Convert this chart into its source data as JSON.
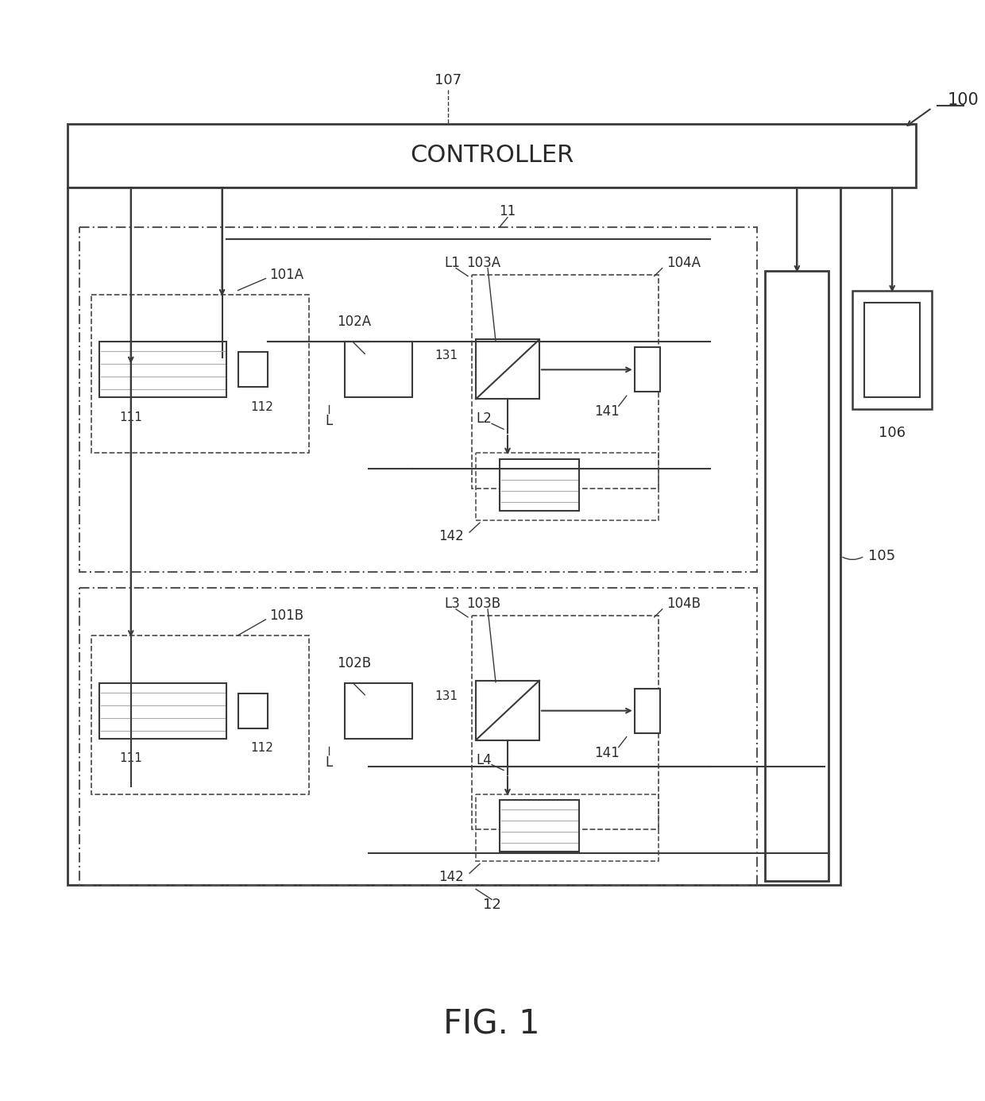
{
  "fig_label": "FIG. 1",
  "ref_100": "100",
  "ref_107": "107",
  "ref_11": "11",
  "ref_12": "12",
  "ref_105": "105",
  "ref_106": "106",
  "ref_101A": "101A",
  "ref_101B": "101B",
  "ref_102A": "102A",
  "ref_102B": "102B",
  "ref_103A": "103A",
  "ref_103B": "103B",
  "ref_104A": "104A",
  "ref_104B": "104B",
  "ref_111": "111",
  "ref_112": "112",
  "ref_131": "131",
  "ref_141": "141",
  "ref_142": "142",
  "ref_L": "L",
  "ref_L1": "L1",
  "ref_L2": "L2",
  "ref_L3": "L3",
  "ref_L4": "L4",
  "controller_label": "CONTROLLER",
  "bg_color": "#ffffff",
  "line_color": "#3a3a3a",
  "gray_color": "#888888"
}
